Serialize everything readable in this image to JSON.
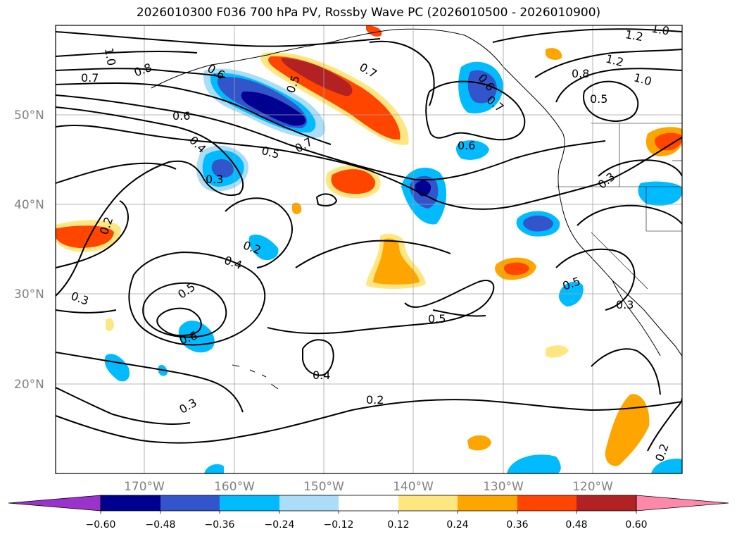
{
  "title": "2026010300 F036 700 hPa PV, Rossby Wave PC (2026010500 - 2026010900)",
  "latitude_labels": [
    "50°N",
    "40°N",
    "30°N",
    "20°N"
  ],
  "longitude_labels": [
    "170°W",
    "160°W",
    "150°W",
    "140°W",
    "130°W",
    "120°W"
  ],
  "colorbar": {
    "tick_labels": [
      "−0.60",
      "−0.48",
      "−0.36",
      "−0.24",
      "−0.12",
      "0.12",
      "0.24",
      "0.36",
      "0.48",
      "0.60"
    ],
    "colors": [
      "#9933cc",
      "#000090",
      "#3355cc",
      "#00bbff",
      "#aaddf8",
      "#ffffff",
      "#ffe680",
      "#ffa500",
      "#ff4500",
      "#b22222",
      "#ff88aa"
    ]
  },
  "contour_labels": [
    "1.0",
    "0.7",
    "0.8",
    "0.6",
    "0.5",
    "0.7",
    "0.6",
    "0.4",
    "0.5",
    "0.3",
    "0.2",
    "0.3",
    "0.2",
    "0.4",
    "0.5",
    "0.6",
    "0.3",
    "0.4",
    "0.2",
    "0.5",
    "0.5",
    "0.7",
    "0.6",
    "0.8",
    "1.2",
    "1.2",
    "1.0",
    "0.5",
    "0.3",
    "0.3",
    "0.2",
    "1.0",
    "0.6",
    "0.7"
  ]
}
